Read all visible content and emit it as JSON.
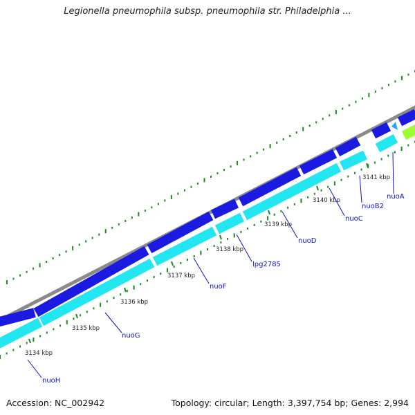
{
  "title": "Legionella pneumophila subsp. pneumophila str. Philadelphia ...",
  "footer": {
    "accession": "Accession: NC_002942",
    "summary": "Topology: circular; Length: 3,397,754 bp; Genes: 2,994"
  },
  "colors": {
    "backbone": "#8a8a8a",
    "forward_gene": "#1a1ae0",
    "reverse_gene": "#22e6f0",
    "rna_gene": "#99ff33",
    "small_gene": "#22aaff",
    "ticks": "#1a8a1a",
    "gene_label": "#1010cc"
  },
  "ticks": [
    {
      "kbp": 3134,
      "label": "3134 kbp"
    },
    {
      "kbp": 3135,
      "label": "3135 kbp"
    },
    {
      "kbp": 3136,
      "label": "3136 kbp"
    },
    {
      "kbp": 3137,
      "label": "3137 kbp"
    },
    {
      "kbp": 3138,
      "label": "3138 kbp"
    },
    {
      "kbp": 3139,
      "label": "3139 kbp"
    },
    {
      "kbp": 3140,
      "label": "3140 kbp"
    },
    {
      "kbp": 3141,
      "label": "3141 kbp"
    }
  ],
  "genes": [
    {
      "name": "nuoH"
    },
    {
      "name": "nuoG"
    },
    {
      "name": "nuoF"
    },
    {
      "name": "lpg2785"
    },
    {
      "name": "nuoD"
    },
    {
      "name": "nuoC"
    },
    {
      "name": "nuoB2"
    },
    {
      "name": "nuoA"
    }
  ]
}
